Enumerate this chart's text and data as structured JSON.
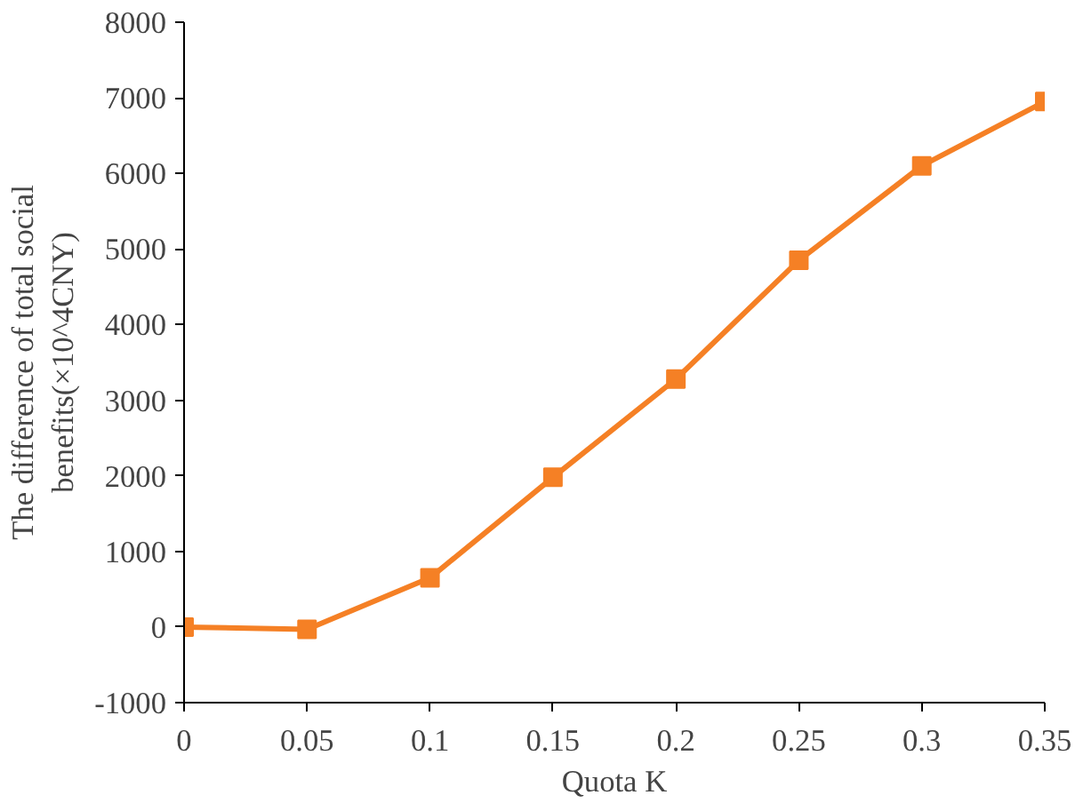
{
  "chart_data": {
    "type": "line",
    "xlabel": "Quota K",
    "ylabel": "The difference of total social benefits(×10^4CNY)",
    "x": [
      0,
      0.05,
      0.1,
      0.15,
      0.2,
      0.25,
      0.3,
      0.35
    ],
    "series": [
      {
        "color": "#f58025",
        "values": [
          0,
          -30,
          650,
          1980,
          3280,
          4850,
          6100,
          6950
        ]
      }
    ],
    "xlim": [
      0,
      0.35
    ],
    "xticks": [
      0,
      0.05,
      0.1,
      0.15,
      0.2,
      0.25,
      0.3,
      0.35
    ],
    "ylim": [
      -1000,
      8000
    ],
    "yticks": [
      -1000,
      0,
      1000,
      2000,
      3000,
      4000,
      5000,
      6000,
      7000,
      8000
    ],
    "grid": false,
    "marker": "square",
    "line_style": "solid"
  }
}
